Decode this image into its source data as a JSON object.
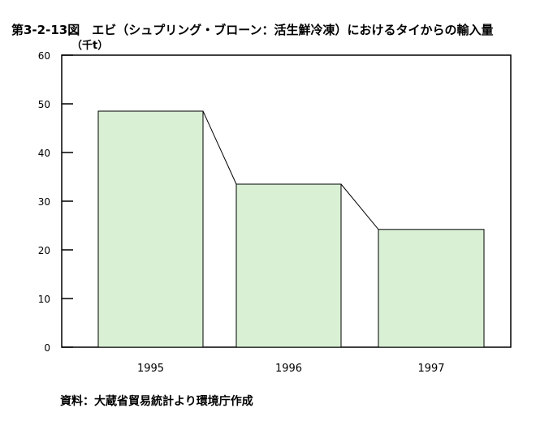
{
  "chart_data": {
    "type": "bar",
    "title": "第3-2-13図　エビ（シュプリング・ブローン：活生鮮冷凍）におけるタイからの輸入量",
    "ylabel": "（千t）",
    "xlabel": "",
    "categories": [
      "1995",
      "1996",
      "1997"
    ],
    "values": [
      48.5,
      33.5,
      24.2
    ],
    "ylim": [
      0,
      60
    ],
    "yticks": [
      "0",
      "10",
      "20",
      "30",
      "40",
      "50",
      "60"
    ],
    "bar_color": "#d9f0d5",
    "connector_lines": true,
    "grid": false
  },
  "source": "資料：大蔵省貿易統計より環境庁作成"
}
